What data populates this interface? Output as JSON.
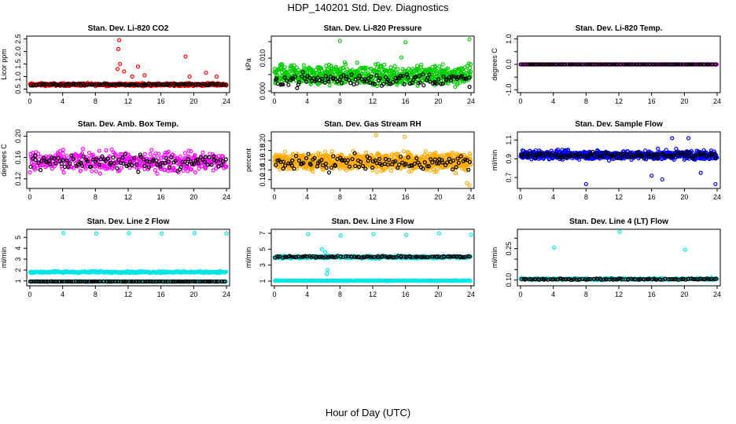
{
  "title": "HDP_140201  Std. Dev. Diagnostics",
  "xlabel": "Hour of Day (UTC)",
  "x_ticks": [
    0,
    4,
    8,
    12,
    16,
    20,
    24
  ],
  "chart_data": [
    {
      "type": "scatter",
      "title": "Stan. Dev. Li-820 CO2",
      "ylabel": "Licor ppm",
      "ylim": [
        0.42,
        2.55
      ],
      "yticks": [
        0.5,
        1.0,
        1.5,
        2.0,
        2.5
      ],
      "ytick_labels": [
        "0.5",
        "1.0",
        "1.5",
        "2.0",
        "2.5"
      ],
      "xlim": [
        0,
        24
      ],
      "color": "#ff0000",
      "background_series": {
        "base": 0.68,
        "spread": 0.08,
        "count": 500
      },
      "outliers": [
        [
          10.9,
          2.45
        ],
        [
          10.8,
          2.1
        ],
        [
          11.0,
          1.5
        ],
        [
          10.7,
          1.3
        ],
        [
          11.5,
          1.2
        ],
        [
          13.2,
          1.4
        ],
        [
          12.5,
          1.0
        ],
        [
          19.0,
          1.8
        ],
        [
          19.5,
          1.0
        ],
        [
          21.5,
          1.15
        ],
        [
          22.8,
          1.0
        ],
        [
          14.0,
          1.05
        ]
      ],
      "black_series": {
        "base": 0.68,
        "spread": 0.06,
        "count": 120
      }
    },
    {
      "type": "scatter",
      "title": "Stan. Dev. Li-820 Pressure",
      "ylabel": "kPa",
      "ylim": [
        0.0,
        0.0162
      ],
      "yticks": [
        0.0,
        0.005,
        0.01,
        0.015
      ],
      "ytick_labels": [
        "0.000",
        "",
        "0.010",
        ""
      ],
      "xlim": [
        0,
        24
      ],
      "color": "#00cc00",
      "background_series": {
        "base": 0.0048,
        "spread": 0.0045,
        "count": 700
      },
      "outliers": [
        [
          8.0,
          0.0152
        ],
        [
          15.5,
          0.0102
        ],
        [
          16.0,
          0.0148
        ],
        [
          23.8,
          0.0157
        ]
      ],
      "black_series": {
        "base": 0.0035,
        "spread": 0.003,
        "count": 120
      }
    },
    {
      "type": "scatter",
      "title": "Stan. Dev. Li-820 Temp.",
      "ylabel": "degrees C",
      "ylim": [
        -1.05,
        1.05
      ],
      "yticks": [
        -1.0,
        -0.5,
        0.0,
        0.5,
        1.0
      ],
      "ytick_labels": [
        "-1.0",
        "",
        "0.0",
        "",
        "1.0"
      ],
      "xlim": [
        0,
        24
      ],
      "color": "#ff00ff",
      "background_series": {
        "base": 0.0,
        "spread": 0.0,
        "count": 240
      },
      "outliers": [],
      "black_series": {
        "base": 0.0,
        "spread": 0.0,
        "count": 120
      }
    },
    {
      "type": "scatter",
      "title": "Stan. Dev. Amb. Box Temp.",
      "ylabel": "degrees C",
      "ylim": [
        0.105,
        0.205
      ],
      "yticks": [
        0.12,
        0.16,
        0.2
      ],
      "ytick_labels": [
        "0.12",
        "0.16",
        "0.20"
      ],
      "xlim": [
        0,
        24
      ],
      "color": "#ff00ff",
      "background_series": {
        "base": 0.152,
        "spread": 0.028,
        "count": 420
      },
      "outliers": [],
      "black_series": {
        "base": 0.152,
        "spread": 0.022,
        "count": 110
      }
    },
    {
      "type": "scatter",
      "title": "Stan. Dev. Gas Stream RH",
      "ylabel": "percent",
      "ylim": [
        0.105,
        0.215
      ],
      "yticks": [
        0.12,
        0.14,
        0.16,
        0.18,
        0.2
      ],
      "ytick_labels": [
        "0.12",
        "0.14",
        "0.16",
        "0.18",
        "0.20"
      ],
      "xlim": [
        0,
        24
      ],
      "color": "#ffaa00",
      "background_series": {
        "base": 0.157,
        "spread": 0.025,
        "count": 900
      },
      "outliers": [
        [
          23.8,
          0.108
        ],
        [
          23.5,
          0.113
        ],
        [
          12.4,
          0.212
        ],
        [
          15.9,
          0.208
        ]
      ],
      "black_series": {
        "base": 0.155,
        "spread": 0.022,
        "count": 110
      }
    },
    {
      "type": "scatter",
      "title": "Stan. Dev. Sample Flow",
      "ylabel": "ml/min",
      "ylim": [
        0.6,
        1.17
      ],
      "yticks": [
        0.7,
        0.9,
        1.1
      ],
      "ytick_labels": [
        "0.7",
        "0.9",
        "1.1"
      ],
      "xlim": [
        0,
        24
      ],
      "color": "#0000ff",
      "background_series": {
        "base": 0.94,
        "spread": 0.07,
        "count": 650
      },
      "outliers": [
        [
          8.0,
          0.63
        ],
        [
          23.8,
          0.63
        ],
        [
          16.0,
          0.72
        ],
        [
          17.3,
          0.68
        ],
        [
          18.5,
          1.12
        ],
        [
          20.5,
          1.12
        ],
        [
          22.0,
          0.75
        ]
      ],
      "black_series": {
        "base": 0.94,
        "spread": 0.05,
        "count": 120
      }
    },
    {
      "type": "scatter",
      "title": "Stan. Dev. Line 2 Flow",
      "ylabel": "ml/min",
      "ylim": [
        0.7,
        5.6
      ],
      "yticks": [
        1,
        2,
        3,
        4,
        5
      ],
      "ytick_labels": [
        "1",
        "2",
        "3",
        "4",
        "5"
      ],
      "xlim": [
        0,
        24
      ],
      "color": "#00e5e5",
      "bands": [
        {
          "base": 1.82,
          "spread": 0.12,
          "count": 320
        },
        {
          "base": 0.95,
          "spread": 0.03,
          "count": 200
        }
      ],
      "outliers": [
        [
          4.1,
          5.4
        ],
        [
          8.1,
          5.35
        ],
        [
          12.1,
          5.4
        ],
        [
          16.1,
          5.35
        ],
        [
          20.1,
          5.4
        ],
        [
          24.0,
          5.35
        ]
      ],
      "black_series": {
        "base": 0.95,
        "spread": 0.02,
        "count": 120
      }
    },
    {
      "type": "scatter",
      "title": "Stan. Dev. Line 3 Flow",
      "ylabel": "ml/min",
      "ylim": [
        0.6,
        7.3
      ],
      "yticks": [
        1,
        3,
        5,
        7
      ],
      "ytick_labels": [
        "1",
        "3",
        "5",
        "7"
      ],
      "xlim": [
        0,
        24
      ],
      "color": "#00e5e5",
      "bands": [
        {
          "base": 4.0,
          "spread": 0.25,
          "count": 320
        },
        {
          "base": 1.05,
          "spread": 0.06,
          "count": 260
        }
      ],
      "outliers": [
        [
          4.1,
          6.9
        ],
        [
          8.1,
          6.7
        ],
        [
          12.1,
          6.9
        ],
        [
          16.1,
          6.8
        ],
        [
          20.1,
          7.0
        ],
        [
          24.0,
          6.8
        ],
        [
          5.8,
          5.0
        ],
        [
          6.2,
          4.6
        ],
        [
          6.5,
          2.4
        ],
        [
          6.4,
          1.9
        ]
      ],
      "black_series": {
        "base": 4.05,
        "spread": 0.18,
        "count": 110
      }
    },
    {
      "type": "scatter",
      "title": "Stan. Dev. Line 4 (LT) Flow",
      "ylabel": "ml/min",
      "ylim": [
        0.08,
        0.335
      ],
      "yticks": [
        0.1,
        0.15,
        0.2,
        0.25,
        0.3
      ],
      "ytick_labels": [
        "0.10",
        "",
        "",
        "0.25",
        ""
      ],
      "xlim": [
        0,
        24
      ],
      "color": "#00e5e5",
      "bands": [
        {
          "base": 0.105,
          "spread": 0.007,
          "count": 260
        }
      ],
      "outliers": [
        [
          4.1,
          0.255
        ],
        [
          12.1,
          0.33
        ],
        [
          20.1,
          0.245
        ]
      ],
      "black_series": {
        "base": 0.104,
        "spread": 0.005,
        "count": 110
      }
    }
  ]
}
